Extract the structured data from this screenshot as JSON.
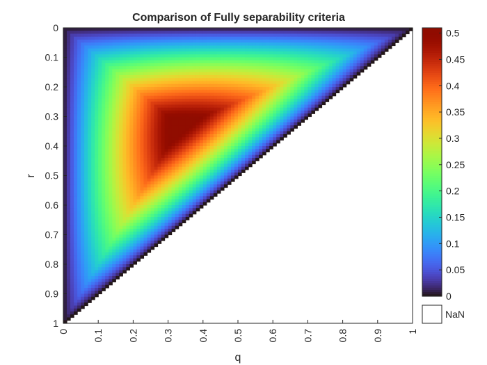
{
  "chart_data": {
    "type": "heatmap",
    "title": "Comparison of Fully separability criteria",
    "xlabel": "q",
    "ylabel": "r",
    "xlim": [
      0,
      1
    ],
    "ylim": [
      0,
      1
    ],
    "y_direction": "reversed",
    "grid": false,
    "domain": "q + r <= 1 (values NaN where q + r > 1)",
    "resolution_steps": 100,
    "x_ticks": [
      "0",
      "0.1",
      "0.2",
      "0.3",
      "0.4",
      "0.5",
      "0.6",
      "0.7",
      "0.8",
      "0.9",
      "1"
    ],
    "y_ticks": [
      "0",
      "0.1",
      "0.2",
      "0.3",
      "0.4",
      "0.5",
      "0.6",
      "0.7",
      "0.8",
      "0.9",
      "1"
    ],
    "peak": {
      "q": 0.333,
      "r": 0.333,
      "value": 0.51
    },
    "sample_values": [
      {
        "q": 0.0,
        "r": 0.0,
        "value": 0.0
      },
      {
        "q": 0.333,
        "r": 0.333,
        "value": 0.51
      },
      {
        "q": 0.3,
        "r": 0.2,
        "value": 0.25
      },
      {
        "q": 0.2,
        "r": 0.5,
        "value": 0.2
      },
      {
        "q": 0.1,
        "r": 0.3,
        "value": 0.15
      },
      {
        "q": 0.5,
        "r": 0.2,
        "value": 0.14
      },
      {
        "q": 0.1,
        "r": 0.8,
        "value": 0.08
      },
      {
        "q": 0.8,
        "r": 0.1,
        "value": 0.07
      },
      {
        "q": 0.0,
        "r": 1.0,
        "value": 0.0
      },
      {
        "q": 1.0,
        "r": 0.0,
        "value": 0.0
      }
    ],
    "colorbar": {
      "colormap": "turbo",
      "clim": [
        0,
        0.51
      ],
      "ticks": [
        "0",
        "0.05",
        "0.1",
        "0.15",
        "0.2",
        "0.25",
        "0.3",
        "0.35",
        "0.4",
        "0.45",
        "0.5"
      ],
      "nan_label": "NaN",
      "nan_color": "#ffffff"
    }
  }
}
